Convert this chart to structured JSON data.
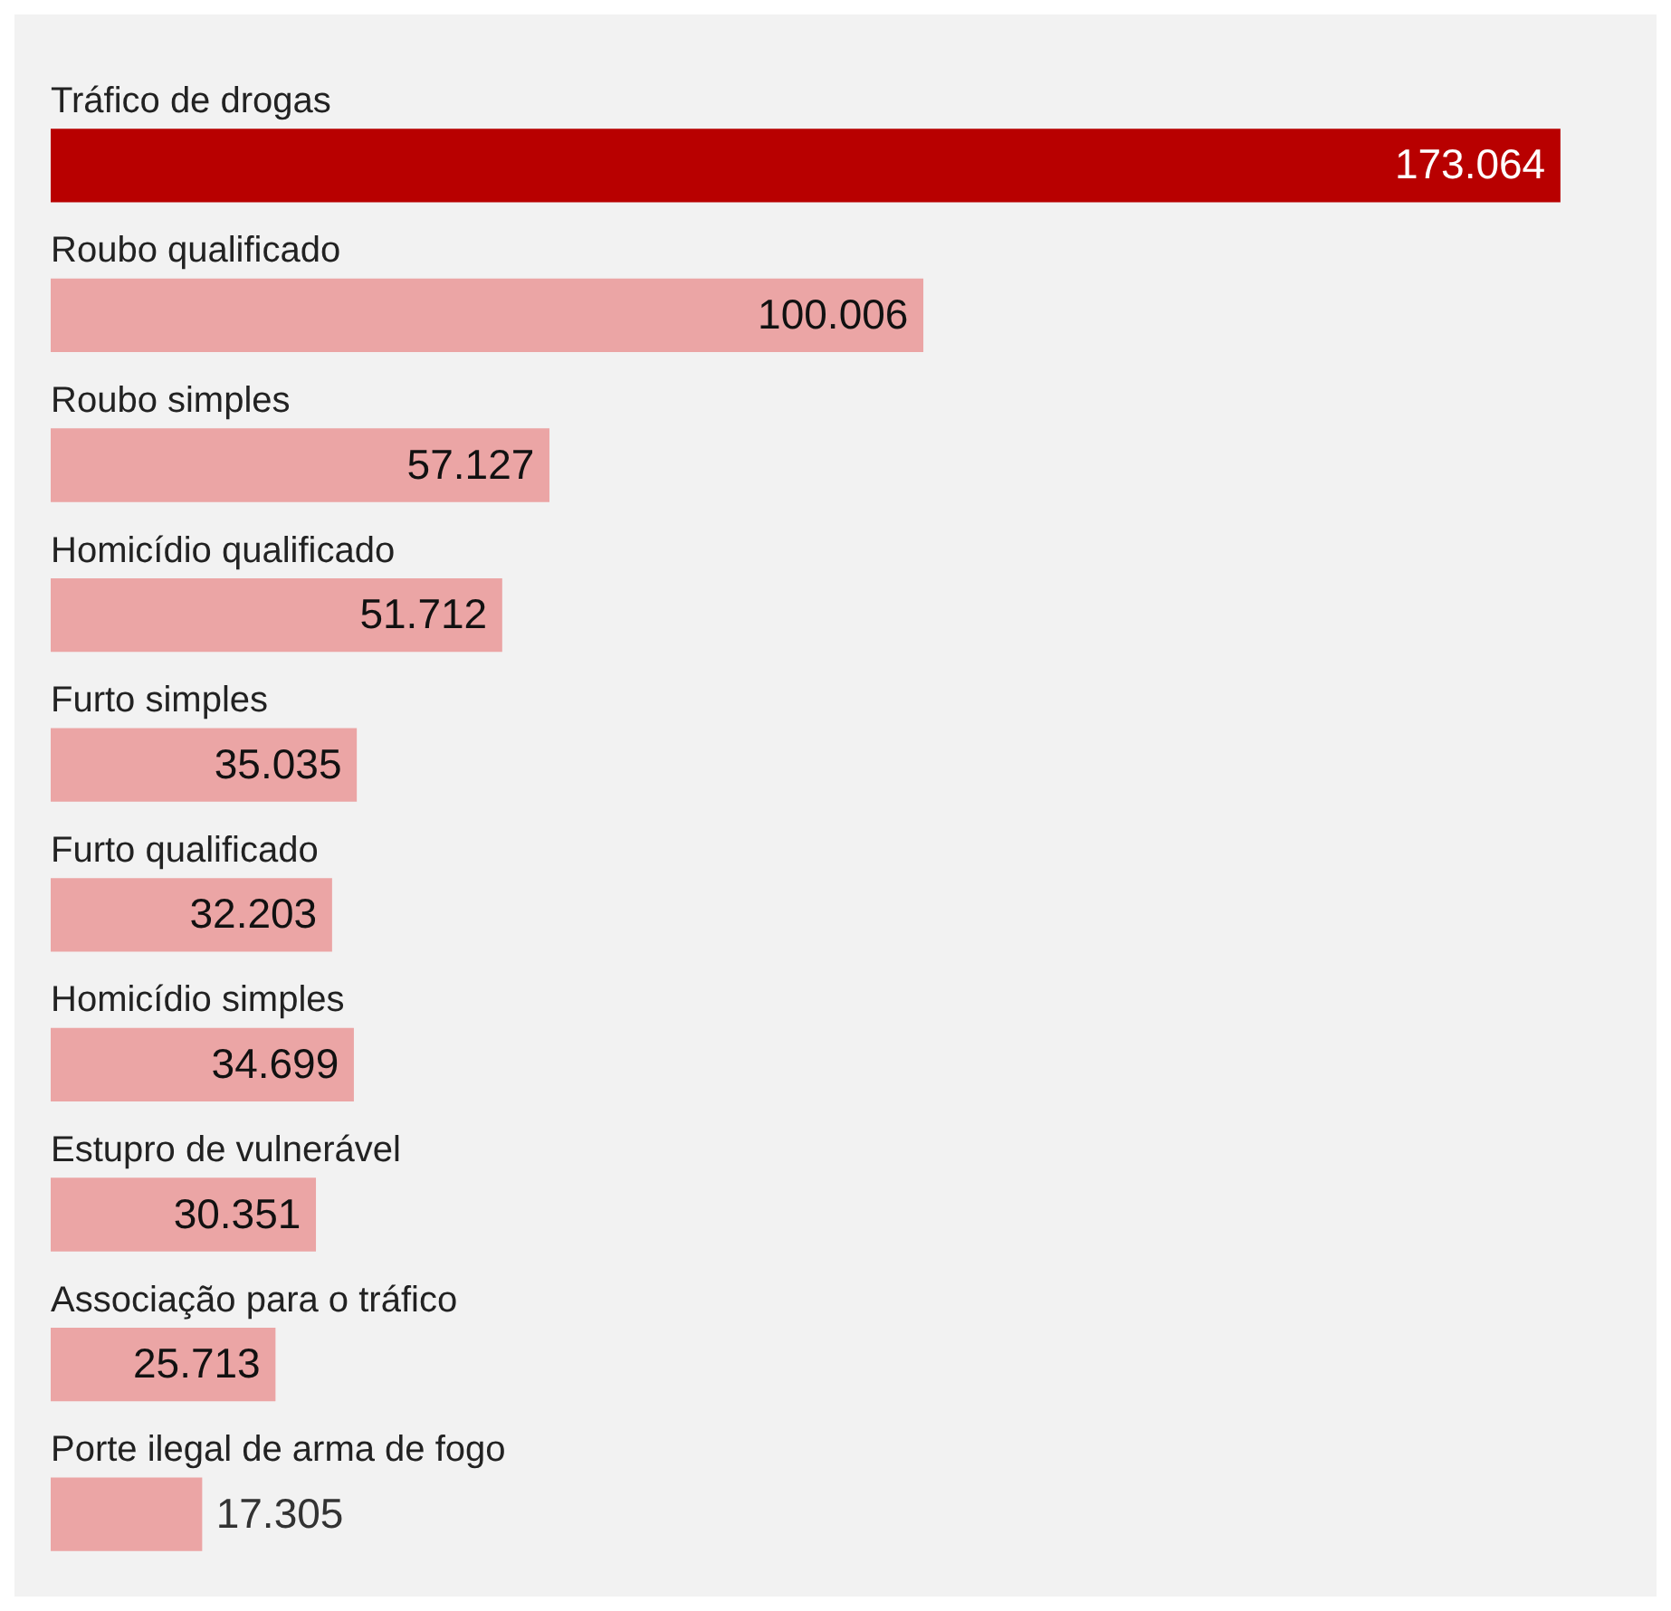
{
  "chart_data": {
    "type": "bar",
    "orientation": "horizontal",
    "categories": [
      "Tráfico de drogas",
      "Roubo qualificado",
      "Roubo simples",
      "Homicídio qualificado",
      "Furto simples",
      "Furto qualificado",
      "Homicídio simples",
      "Estupro de vulnerável",
      "Associação para o tráfico",
      "Porte ilegal de arma de fogo"
    ],
    "values": [
      173064,
      100006,
      57127,
      51712,
      35035,
      32203,
      34699,
      30351,
      25713,
      17305
    ],
    "value_labels": [
      "173.064",
      "100.006",
      "57.127",
      "51.712",
      "35.035",
      "32.203",
      "34.699",
      "30.351",
      "25.713",
      "17.305"
    ],
    "colors": [
      "#b80000",
      "#eba5a5",
      "#eba5a5",
      "#eba5a5",
      "#eba5a5",
      "#eba5a5",
      "#eba5a5",
      "#eba5a5",
      "#eba5a5",
      "#eba5a5"
    ]
  }
}
